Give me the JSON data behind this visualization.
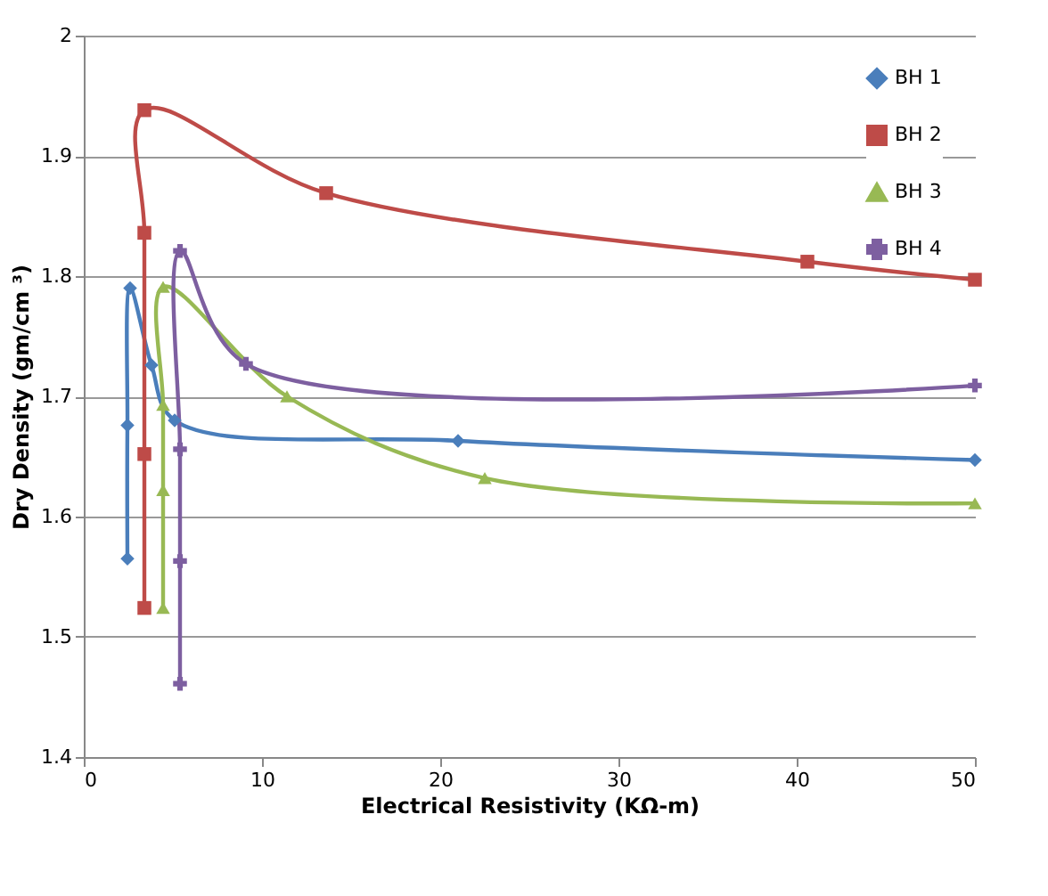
{
  "chart_data": {
    "type": "line",
    "xlabel": "Electrical Resistivity (KΩ-m)",
    "ylabel": "Dry Density (gm/cm ³)",
    "xlim": [
      0,
      50
    ],
    "xticks": [
      0,
      10,
      20,
      30,
      40,
      50
    ],
    "ylim": [
      1.4,
      2
    ],
    "yticks": [
      1.4,
      1.5,
      1.6,
      1.7,
      1.8,
      1.9,
      2
    ],
    "grid": "y",
    "legend": "top right",
    "line_style": "solid",
    "series": [
      {
        "name": "BH 1",
        "color": "#4a7ebb",
        "marker": "diamond",
        "x": [
          2.45,
          2.45,
          2.6,
          3.8,
          5.1,
          21.0,
          50
        ],
        "values": [
          1.565,
          1.676,
          1.79,
          1.726,
          1.68,
          1.663,
          1.647
        ]
      },
      {
        "name": "BH 2",
        "color": "#be4b48",
        "marker": "square",
        "x": [
          3.4,
          3.4,
          3.4,
          3.4,
          13.6,
          40.6,
          50
        ],
        "values": [
          1.524,
          1.652,
          1.836,
          1.938,
          1.869,
          1.812,
          1.797
        ]
      },
      {
        "name": "BH 3",
        "color": "#98b954",
        "marker": "triangle",
        "x": [
          4.45,
          4.45,
          4.45,
          4.45,
          11.4,
          22.5,
          50
        ],
        "values": [
          1.524,
          1.622,
          1.693,
          1.791,
          1.7,
          1.632,
          1.611
        ]
      },
      {
        "name": "BH 4",
        "color": "#7d5fa0",
        "marker": "cross",
        "x": [
          5.4,
          5.4,
          5.4,
          5.4,
          9.1,
          50
        ],
        "values": [
          1.461,
          1.563,
          1.656,
          1.821,
          1.727,
          1.709
        ]
      }
    ]
  }
}
